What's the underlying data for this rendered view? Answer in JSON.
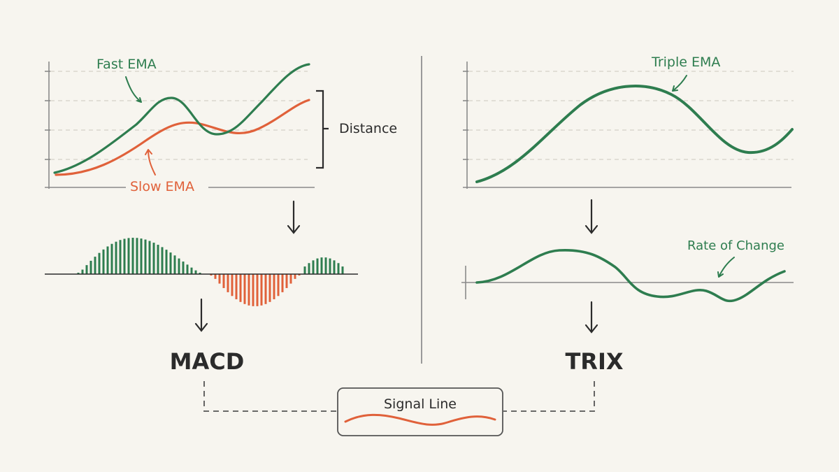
{
  "colors": {
    "background": "#f7f5ef",
    "green": "#2e7d4f",
    "red": "#e0613a",
    "ink": "#2b2b2b",
    "axis": "#8a8a8a",
    "grid": "#d4d0c8"
  },
  "left_panel": {
    "fast_label": "Fast EMA",
    "slow_label": "Slow EMA",
    "distance_label": "Distance",
    "histogram_positive_color": "#2e7d4f",
    "histogram_negative_color": "#e0613a",
    "result_label": "MACD"
  },
  "right_panel": {
    "triple_label": "Triple EMA",
    "roc_label": "Rate of Change",
    "result_label": "TRIX"
  },
  "signal": {
    "label": "Signal Line"
  },
  "icons": [
    "down-arrow-icon",
    "curved-pointer-arrow-icon",
    "bracket-icon"
  ]
}
